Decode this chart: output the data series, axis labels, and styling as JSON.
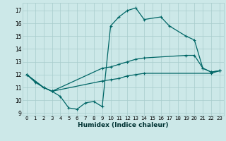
{
  "xlabel": "Humidex (Indice chaleur)",
  "xlim": [
    -0.5,
    23.5
  ],
  "ylim": [
    8.8,
    17.6
  ],
  "yticks": [
    9,
    10,
    11,
    12,
    13,
    14,
    15,
    16,
    17
  ],
  "xticks": [
    0,
    1,
    2,
    3,
    4,
    5,
    6,
    7,
    8,
    9,
    10,
    11,
    12,
    13,
    14,
    15,
    16,
    17,
    18,
    19,
    20,
    21,
    22,
    23
  ],
  "bg_color": "#cce8e8",
  "grid_color": "#a8cccc",
  "line_color": "#006666",
  "line_width": 0.9,
  "marker": "+",
  "marker_size": 3.5,
  "lines": [
    {
      "x": [
        0,
        1,
        2,
        3,
        4,
        5,
        6,
        7,
        8,
        9,
        10,
        11,
        12,
        13,
        14,
        16,
        17,
        19,
        20,
        21,
        22,
        23
      ],
      "y": [
        12,
        11.4,
        11.0,
        10.7,
        10.3,
        9.4,
        9.3,
        9.8,
        9.9,
        9.5,
        15.8,
        16.5,
        17.0,
        17.2,
        16.3,
        16.5,
        15.8,
        15.0,
        14.7,
        12.5,
        12.2,
        12.3
      ]
    },
    {
      "x": [
        0,
        2,
        3,
        9,
        10,
        11,
        12,
        13,
        14,
        19,
        20,
        21,
        22,
        23
      ],
      "y": [
        12,
        11.0,
        10.7,
        12.5,
        12.6,
        12.8,
        13.0,
        13.2,
        13.3,
        13.5,
        13.5,
        12.5,
        12.2,
        12.3
      ]
    },
    {
      "x": [
        0,
        2,
        3,
        9,
        10,
        11,
        12,
        13,
        14,
        22,
        23
      ],
      "y": [
        12,
        11.0,
        10.7,
        11.5,
        11.6,
        11.7,
        11.9,
        12.0,
        12.1,
        12.1,
        12.3
      ]
    }
  ]
}
